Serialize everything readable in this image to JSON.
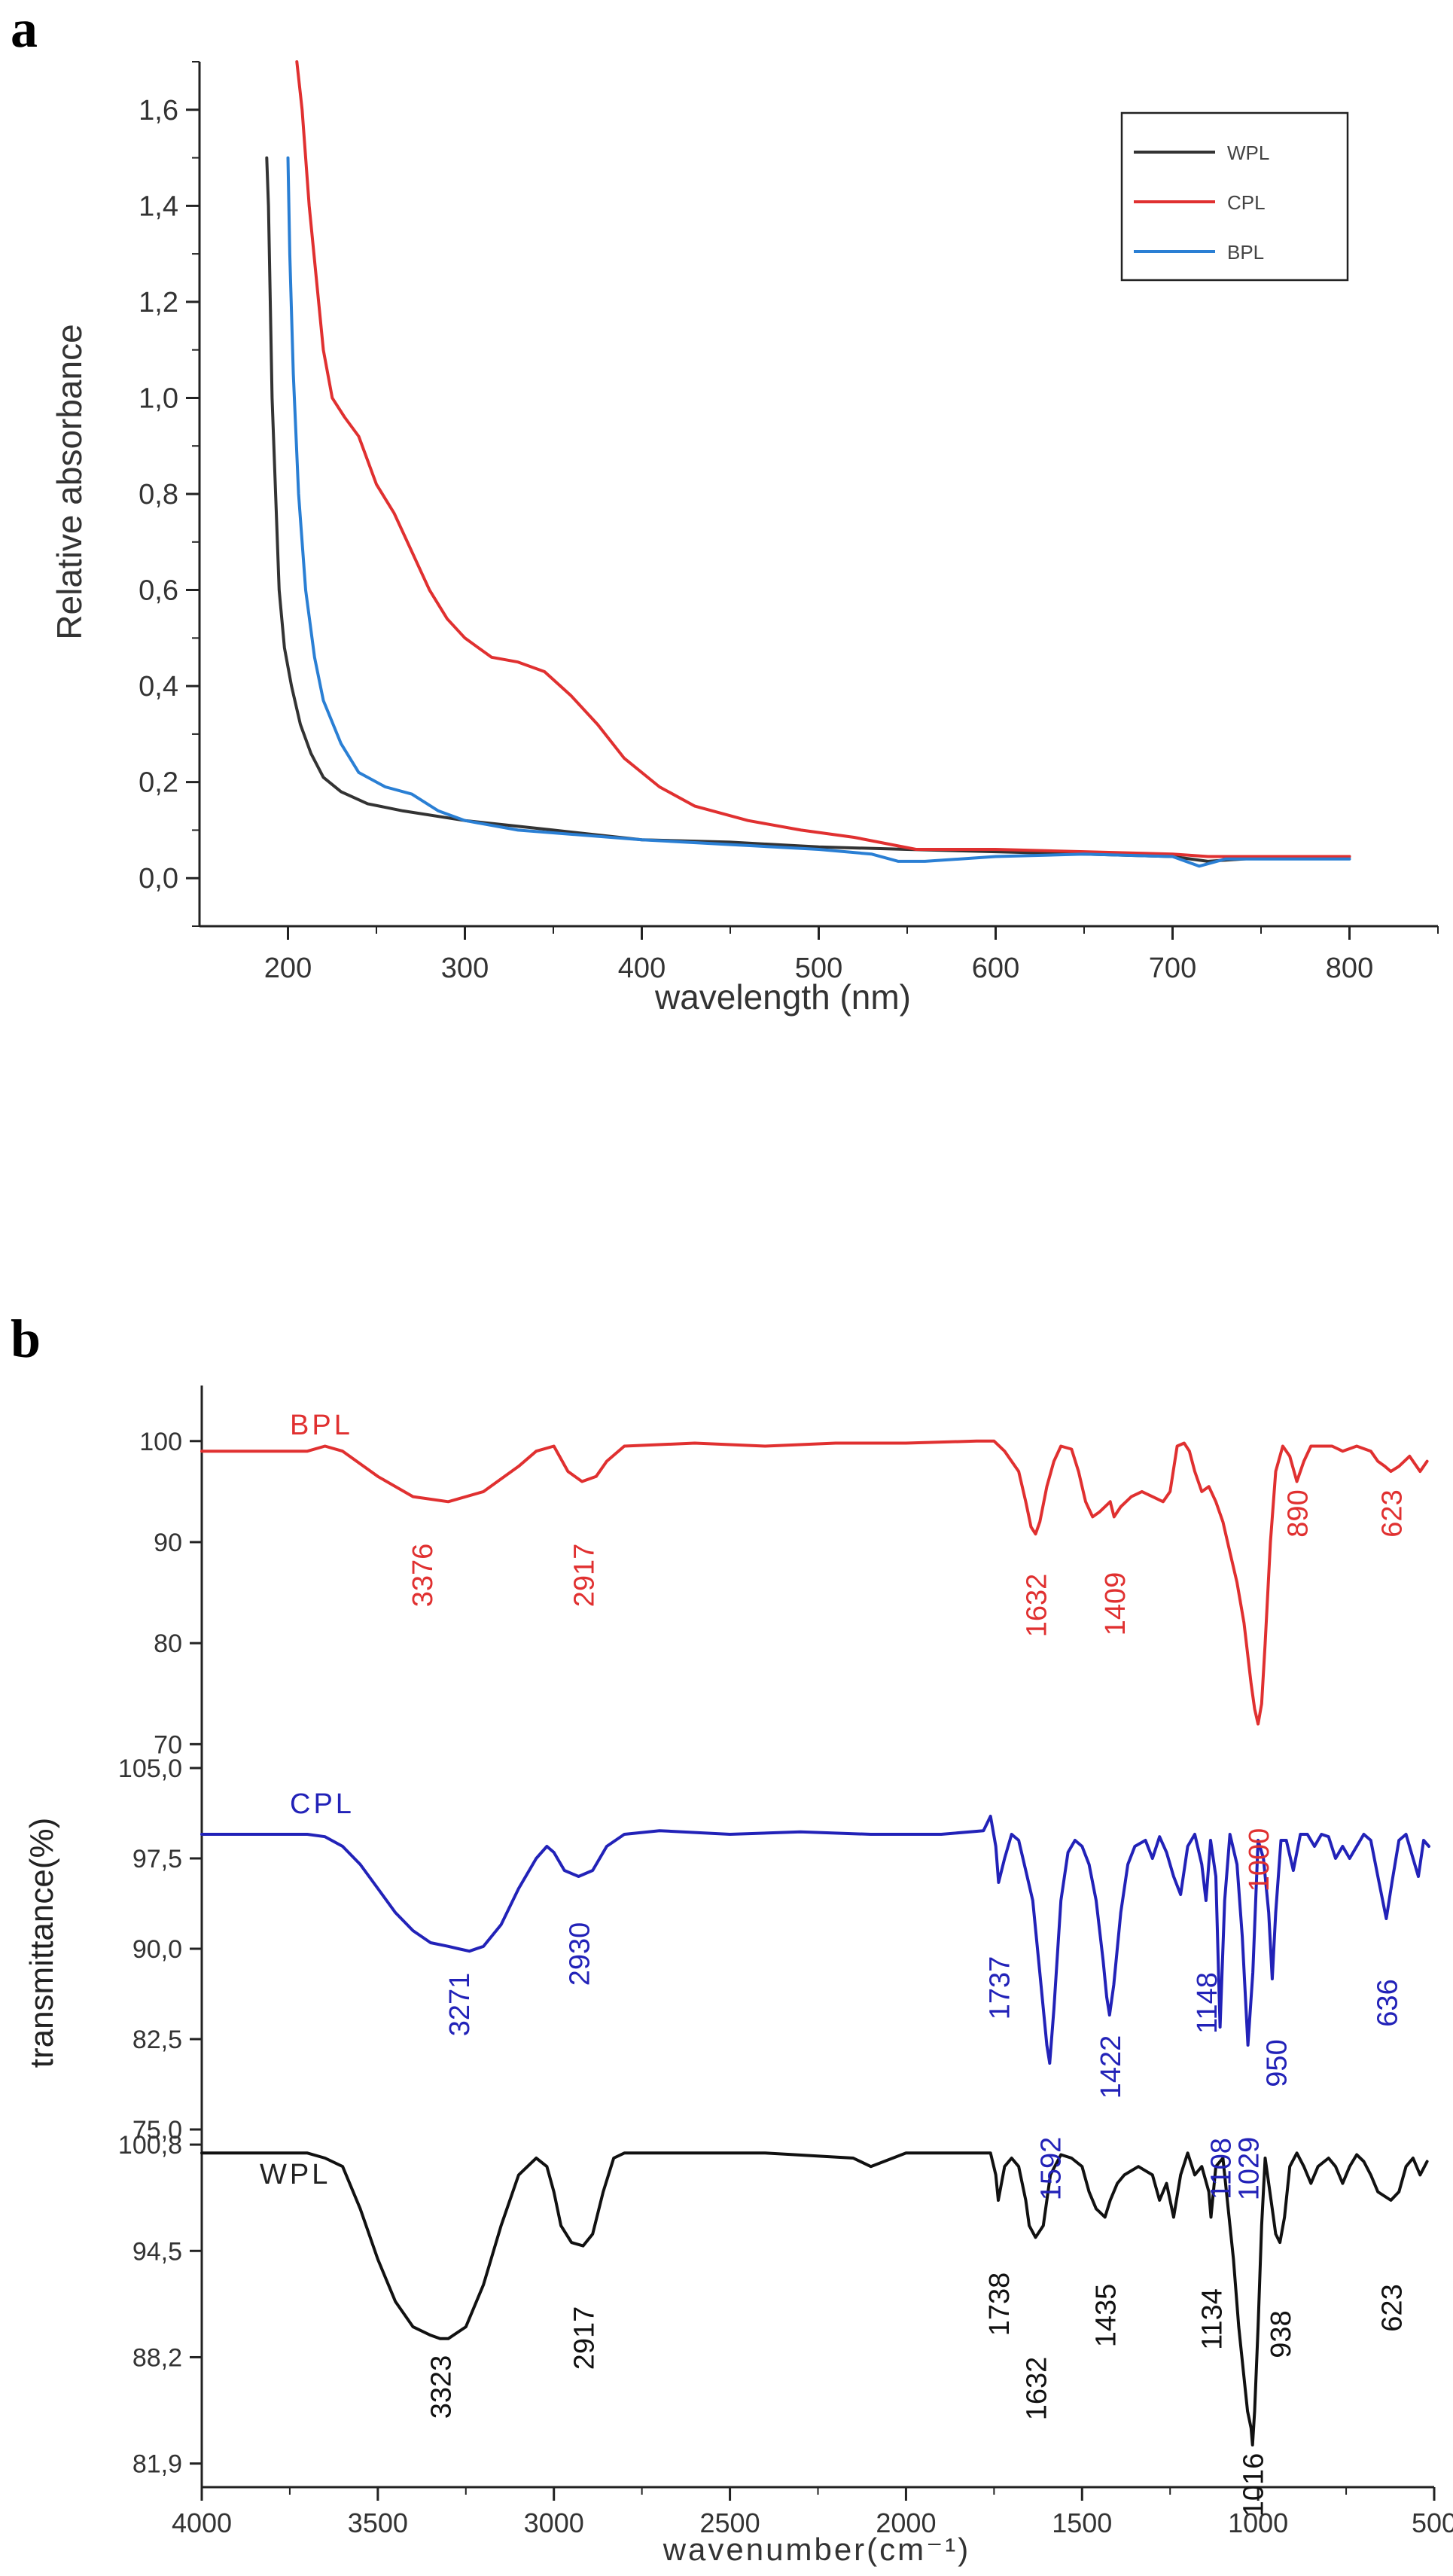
{
  "chart_data": [
    {
      "type": "line",
      "panel": "a",
      "title": "",
      "xlabel": "wavelength (nm)",
      "ylabel": "Relative absorbance",
      "xlim": [
        150,
        850
      ],
      "ylim": [
        -0.1,
        1.7
      ],
      "xticks": [
        200,
        300,
        400,
        500,
        600,
        700,
        800
      ],
      "xtick_labels": [
        "200",
        "300",
        "400",
        "500",
        "600",
        "700",
        "800"
      ],
      "yticks": [
        0,
        0.2,
        0.4,
        0.6,
        0.8,
        1.0,
        1.2,
        1.4,
        1.6
      ],
      "ytick_labels": [
        "0,0",
        "0,2",
        "0,4",
        "0,6",
        "0,8",
        "1,0",
        "1,2",
        "1,4",
        "1,6"
      ],
      "legend": {
        "placement": "top-right",
        "entries": [
          "WPL",
          "CPL",
          "BPL"
        ]
      },
      "series": [
        {
          "name": "WPL",
          "color": "#333333",
          "x": [
            188,
            189,
            191,
            193,
            195,
            198,
            202,
            207,
            213,
            220,
            230,
            245,
            265,
            300,
            350,
            400,
            450,
            500,
            550,
            600,
            650,
            700,
            720,
            740,
            760,
            800
          ],
          "y": [
            1.5,
            1.4,
            1.0,
            0.8,
            0.6,
            0.48,
            0.4,
            0.32,
            0.26,
            0.21,
            0.18,
            0.155,
            0.14,
            0.12,
            0.1,
            0.08,
            0.075,
            0.065,
            0.06,
            0.055,
            0.05,
            0.045,
            0.035,
            0.04,
            0.045,
            0.045
          ]
        },
        {
          "name": "CPL",
          "color": "#e03030",
          "x": [
            205,
            208,
            212,
            216,
            220,
            225,
            232,
            240,
            250,
            260,
            270,
            280,
            290,
            300,
            315,
            330,
            345,
            360,
            375,
            390,
            410,
            430,
            460,
            490,
            520,
            555,
            600,
            650,
            700,
            720,
            740,
            770,
            800
          ],
          "y": [
            1.7,
            1.6,
            1.4,
            1.25,
            1.1,
            1.0,
            0.96,
            0.92,
            0.82,
            0.76,
            0.68,
            0.6,
            0.54,
            0.5,
            0.46,
            0.45,
            0.43,
            0.38,
            0.32,
            0.25,
            0.19,
            0.15,
            0.12,
            0.1,
            0.085,
            0.06,
            0.06,
            0.055,
            0.05,
            0.045,
            0.045,
            0.045,
            0.045
          ]
        },
        {
          "name": "BPL",
          "color": "#2a7fd4",
          "x": [
            200,
            201,
            203,
            206,
            210,
            215,
            220,
            230,
            240,
            255,
            270,
            285,
            300,
            330,
            400,
            450,
            500,
            530,
            545,
            560,
            600,
            650,
            700,
            715,
            730,
            760,
            800
          ],
          "y": [
            1.5,
            1.3,
            1.05,
            0.8,
            0.6,
            0.46,
            0.37,
            0.28,
            0.22,
            0.19,
            0.175,
            0.14,
            0.12,
            0.1,
            0.08,
            0.07,
            0.06,
            0.05,
            0.035,
            0.035,
            0.045,
            0.05,
            0.045,
            0.025,
            0.04,
            0.04,
            0.04
          ]
        }
      ]
    },
    {
      "type": "line",
      "panel": "b",
      "title": "",
      "xlabel": "wavenumber(cm⁻¹)",
      "ylabel": "transmittance(%)",
      "xlim": [
        4000,
        500
      ],
      "xticks": [
        4000,
        3500,
        3000,
        2500,
        2000,
        1500,
        1000,
        500
      ],
      "xtick_labels": [
        "4000",
        "3500",
        "3000",
        "2500",
        "2000",
        "1500",
        "1000",
        "500"
      ],
      "series": [
        {
          "name": "BPL",
          "color": "#e03030",
          "ylim": [
            66,
            105.5
          ],
          "yticks": [
            70,
            80,
            90,
            100
          ],
          "ytick_labels": [
            "70",
            "80",
            "90",
            "100"
          ],
          "x": [
            4000,
            3700,
            3650,
            3600,
            3500,
            3400,
            3300,
            3200,
            3100,
            3050,
            3000,
            2960,
            2920,
            2880,
            2850,
            2800,
            2600,
            2400,
            2200,
            2000,
            1800,
            1750,
            1720,
            1700,
            1680,
            1660,
            1645,
            1632,
            1620,
            1600,
            1580,
            1560,
            1530,
            1510,
            1490,
            1470,
            1450,
            1420,
            1409,
            1390,
            1360,
            1330,
            1300,
            1270,
            1250,
            1230,
            1210,
            1195,
            1180,
            1160,
            1140,
            1120,
            1100,
            1080,
            1060,
            1040,
            1020,
            1010,
            1000,
            990,
            980,
            965,
            950,
            930,
            910,
            890,
            870,
            850,
            820,
            790,
            760,
            720,
            680,
            660,
            640,
            623,
            600,
            570,
            540,
            520
          ],
          "y": [
            99,
            99,
            99.5,
            99,
            96.5,
            94.5,
            94,
            95,
            97.5,
            99,
            99.5,
            97,
            96,
            96.5,
            98,
            99.5,
            99.8,
            99.5,
            99.8,
            99.8,
            100,
            100,
            99,
            98,
            97,
            94,
            91.5,
            90.8,
            92,
            95.5,
            98,
            99.5,
            99.2,
            97,
            94,
            92.5,
            93,
            94,
            92.5,
            93.5,
            94.5,
            95,
            94.5,
            94,
            95,
            99.5,
            99.8,
            99,
            97,
            95,
            95.5,
            94,
            92,
            89,
            86,
            82,
            76,
            73.5,
            72,
            74,
            80,
            90,
            97,
            99.5,
            98.5,
            96,
            98,
            99.5,
            99.5,
            99.5,
            99,
            99.5,
            99,
            98,
            97.5,
            97,
            97.5,
            98.5,
            97,
            98
          ]
        },
        {
          "name": "CPL",
          "color": "#2222b8",
          "ylim": [
            73,
            105.5
          ],
          "yticks": [
            75,
            82.5,
            90,
            97.5,
            105
          ],
          "ytick_labels": [
            "75,0",
            "82,5",
            "90,0",
            "97,5",
            "105,0"
          ],
          "x": [
            4000,
            3700,
            3650,
            3600,
            3550,
            3500,
            3450,
            3400,
            3350,
            3300,
            3271,
            3240,
            3200,
            3150,
            3100,
            3050,
            3020,
            3000,
            2970,
            2930,
            2890,
            2850,
            2800,
            2700,
            2500,
            2300,
            2100,
            1900,
            1780,
            1760,
            1745,
            1737,
            1720,
            1700,
            1680,
            1660,
            1640,
            1620,
            1600,
            1592,
            1580,
            1560,
            1540,
            1520,
            1500,
            1480,
            1460,
            1440,
            1430,
            1422,
            1410,
            1390,
            1370,
            1350,
            1320,
            1300,
            1280,
            1260,
            1240,
            1220,
            1200,
            1180,
            1160,
            1148,
            1135,
            1120,
            1108,
            1095,
            1080,
            1060,
            1045,
            1029,
            1015,
            1000,
            985,
            970,
            960,
            950,
            935,
            920,
            900,
            880,
            860,
            840,
            820,
            800,
            780,
            760,
            740,
            720,
            700,
            680,
            660,
            636,
            620,
            600,
            580,
            560,
            545,
            530,
            515
          ],
          "y": [
            99.5,
            99.5,
            99.3,
            98.5,
            97,
            95,
            93,
            91.5,
            90.5,
            90.2,
            90,
            89.8,
            90.2,
            92,
            95,
            97.5,
            98.5,
            98,
            96.5,
            96,
            96.5,
            98.5,
            99.5,
            99.8,
            99.5,
            99.7,
            99.5,
            99.5,
            99.8,
            101,
            98.5,
            95.5,
            97.5,
            99.5,
            99,
            96.5,
            94,
            88,
            82,
            80.5,
            85,
            94,
            98,
            99,
            98.5,
            97,
            94,
            89,
            86,
            84.5,
            87,
            93,
            97,
            98.5,
            99,
            97.5,
            99.3,
            98,
            96,
            94.5,
            98.5,
            99.5,
            97,
            94,
            99,
            96,
            83.5,
            94,
            99.5,
            97,
            91,
            82,
            88,
            99,
            97.5,
            93,
            87.5,
            93,
            99,
            99,
            96.5,
            99.5,
            99.5,
            98.5,
            99.5,
            99.3,
            97.5,
            98.5,
            97.5,
            98.5,
            99.5,
            99,
            96,
            92.5,
            95.5,
            99,
            99.5,
            97.5,
            96,
            99,
            98.5
          ]
        },
        {
          "name": "WPL",
          "color": "#111111",
          "ylim": [
            80.5,
            102.5
          ],
          "yticks": [
            81.9,
            88.2,
            94.5,
            100.8
          ],
          "ytick_labels": [
            "81,9",
            "88,2",
            "94,5",
            "100,8"
          ],
          "x": [
            4000,
            3700,
            3650,
            3600,
            3550,
            3500,
            3450,
            3400,
            3350,
            3323,
            3300,
            3250,
            3200,
            3150,
            3100,
            3050,
            3020,
            3000,
            2980,
            2950,
            2917,
            2890,
            2860,
            2830,
            2800,
            2600,
            2400,
            2150,
            2100,
            2000,
            1850,
            1760,
            1745,
            1738,
            1720,
            1700,
            1680,
            1660,
            1650,
            1632,
            1610,
            1590,
            1560,
            1530,
            1500,
            1480,
            1460,
            1450,
            1435,
            1420,
            1400,
            1380,
            1340,
            1300,
            1280,
            1260,
            1240,
            1220,
            1200,
            1180,
            1160,
            1140,
            1134,
            1120,
            1100,
            1085,
            1070,
            1055,
            1040,
            1030,
            1020,
            1016,
            1010,
            1000,
            990,
            980,
            970,
            960,
            950,
            938,
            925,
            910,
            890,
            870,
            850,
            830,
            800,
            780,
            760,
            740,
            720,
            700,
            680,
            660,
            623,
            600,
            580,
            560,
            540,
            520
          ],
          "y": [
            100.3,
            100.3,
            100,
            99.5,
            97,
            94,
            91.5,
            90,
            89.5,
            89.3,
            89.3,
            90,
            92.5,
            96,
            99,
            100,
            99.5,
            98,
            96,
            95,
            94.8,
            95.5,
            98,
            100,
            100.3,
            100.3,
            100.3,
            100,
            99.5,
            100.3,
            100.3,
            100.3,
            99,
            97.5,
            99.5,
            100,
            99.5,
            97.5,
            96,
            95.3,
            96,
            99,
            100.2,
            100,
            99.5,
            98,
            97,
            96.8,
            96.5,
            97.5,
            98.5,
            99,
            99.5,
            99,
            97.5,
            98.5,
            96.5,
            99,
            100.3,
            99,
            99.5,
            98,
            96.5,
            99.5,
            100,
            97,
            94,
            90,
            87,
            85,
            84,
            83,
            85,
            90,
            96,
            100,
            98.5,
            97,
            95.5,
            95,
            96.5,
            99.5,
            100.3,
            99.5,
            98.5,
            99.5,
            100,
            99.5,
            98.5,
            99.5,
            100.2,
            99.8,
            99,
            98,
            97.5,
            98,
            99.5,
            100,
            99,
            99.8
          ]
        }
      ],
      "series_labels": [
        "BPL",
        "CPL",
        "WPL"
      ],
      "peak_labels": {
        "BPL": [
          "3376",
          "2917",
          "1632",
          "1409",
          "1000",
          "890",
          "623"
        ],
        "CPL": [
          "3271",
          "2930",
          "1737",
          "1592",
          "1422",
          "1148",
          "1108",
          "1029",
          "950",
          "636"
        ],
        "WPL": [
          "3323",
          "2917",
          "1738",
          "1632",
          "1435",
          "1134",
          "1016",
          "938",
          "623"
        ]
      }
    }
  ],
  "panel_labels": {
    "a": "a",
    "b": "b"
  }
}
